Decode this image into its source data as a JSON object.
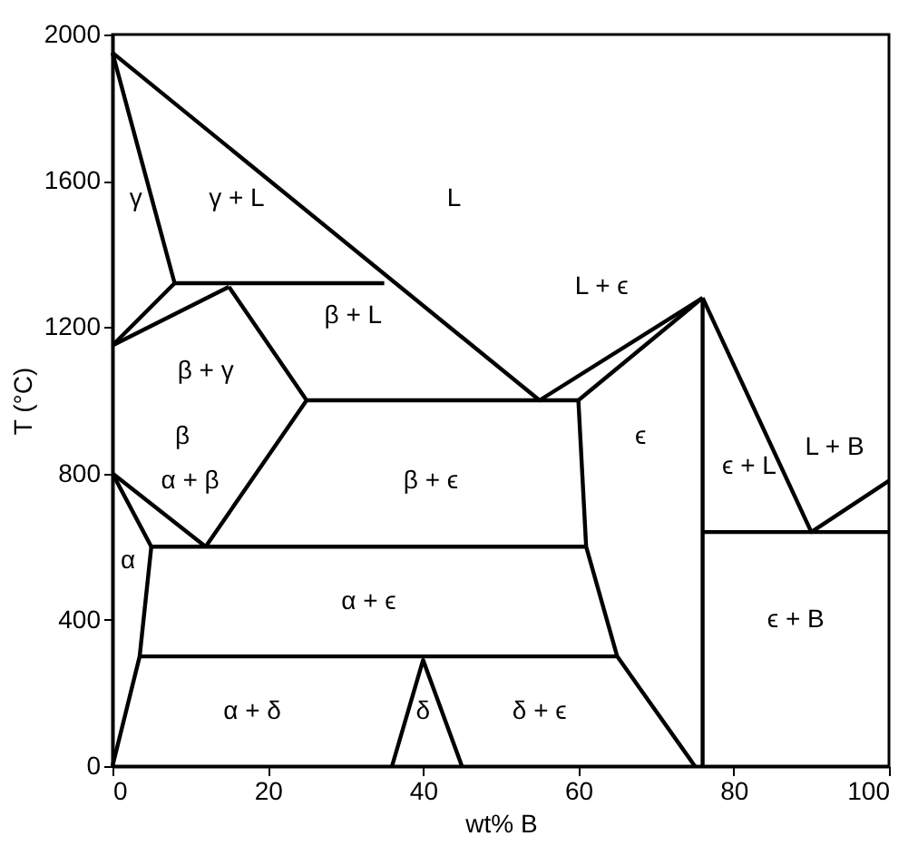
{
  "chart_data": {
    "type": "line",
    "xlabel": "wt% B",
    "ylabel": "T (°C)",
    "xlim": [
      0,
      100
    ],
    "ylim": [
      0,
      2000
    ],
    "xticks": [
      0,
      20,
      40,
      60,
      80,
      100
    ],
    "yticks": [
      0,
      400,
      800,
      1200,
      1600,
      2000
    ],
    "grid": false,
    "marker": "none",
    "line_style": "solid",
    "series": [
      {
        "color": "#000000",
        "x": [
          0,
          55,
          76
        ],
        "values": [
          1950,
          1000,
          1280
        ]
      },
      {
        "color": "#000000",
        "x": [
          0,
          8
        ],
        "values": [
          1950,
          1320
        ]
      },
      {
        "color": "#000000",
        "x": [
          8,
          35
        ],
        "values": [
          1320,
          1320
        ]
      },
      {
        "color": "#000000",
        "x": [
          0,
          8
        ],
        "values": [
          1150,
          1320
        ]
      },
      {
        "color": "#000000",
        "x": [
          0,
          15
        ],
        "values": [
          1150,
          1310
        ]
      },
      {
        "color": "#000000",
        "x": [
          15,
          25,
          12
        ],
        "values": [
          1310,
          1000,
          600
        ]
      },
      {
        "color": "#000000",
        "x": [
          25,
          60
        ],
        "values": [
          1000,
          1000
        ]
      },
      {
        "color": "#000000",
        "x": [
          60,
          76
        ],
        "values": [
          1000,
          1280
        ]
      },
      {
        "color": "#000000",
        "x": [
          60,
          61,
          65,
          75
        ],
        "values": [
          1000,
          600,
          300,
          0
        ]
      },
      {
        "color": "#000000",
        "x": [
          76,
          76
        ],
        "values": [
          1280,
          0
        ]
      },
      {
        "color": "#000000",
        "x": [
          76,
          90,
          100
        ],
        "values": [
          1280,
          640,
          780
        ]
      },
      {
        "color": "#000000",
        "x": [
          76,
          100
        ],
        "values": [
          640,
          640
        ]
      },
      {
        "color": "#000000",
        "x": [
          0,
          5
        ],
        "values": [
          800,
          600
        ]
      },
      {
        "color": "#000000",
        "x": [
          0,
          12
        ],
        "values": [
          800,
          600
        ]
      },
      {
        "color": "#000000",
        "x": [
          5,
          61
        ],
        "values": [
          600,
          600
        ]
      },
      {
        "color": "#000000",
        "x": [
          5,
          3.5,
          0
        ],
        "values": [
          600,
          300,
          0
        ]
      },
      {
        "color": "#000000",
        "x": [
          3.5,
          65
        ],
        "values": [
          300,
          300
        ]
      },
      {
        "color": "#000000",
        "x": [
          36,
          40,
          45
        ],
        "values": [
          0,
          290,
          0
        ]
      }
    ],
    "annotations": [
      "γ",
      "γ + L",
      "L",
      "L + ϵ",
      "β + γ",
      "β + L",
      "β",
      "α + β",
      "β + ϵ",
      "ϵ",
      "ϵ + L",
      "L + B",
      "α",
      "α + ϵ",
      "ϵ + B",
      "α + δ",
      "δ",
      "δ + ϵ"
    ]
  }
}
